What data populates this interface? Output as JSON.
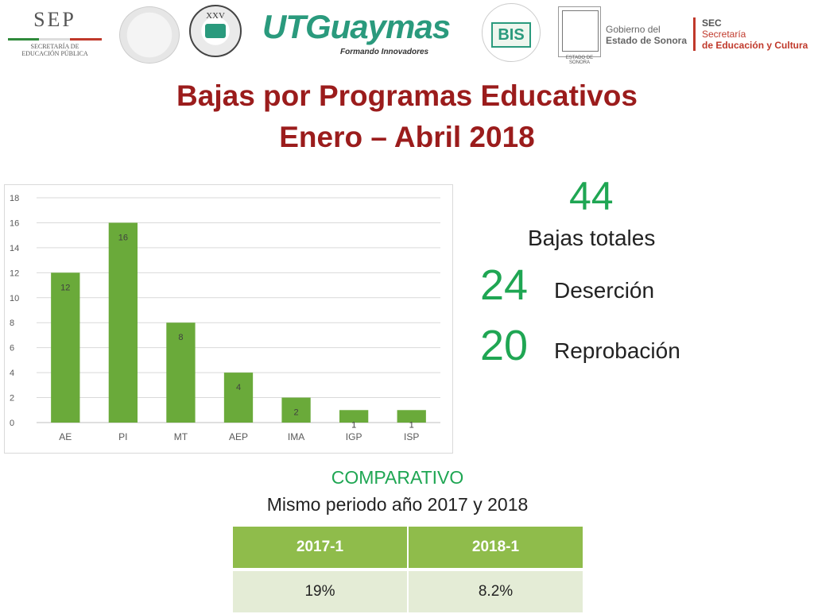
{
  "header": {
    "sep": {
      "title": "SEP",
      "subtitle_line1": "SECRETARÍA DE",
      "subtitle_line2": "EDUCACIÓN PÚBLICA"
    },
    "seal2": {
      "label": "XXV"
    },
    "utg": {
      "word": "UTGuaymas",
      "tagline": "Formando Innovadores"
    },
    "bis": {
      "mark": "BIS"
    },
    "sonora_seal": {
      "label": "ESTADO DE SONORA"
    },
    "gobierno": {
      "line1": "Gobierno del",
      "line2": "Estado de Sonora"
    },
    "sec": {
      "line1": "SEC",
      "line2": "Secretaría",
      "line3": "de Educación y Cultura"
    }
  },
  "title": {
    "line1": "Bajas por Programas Educativos",
    "line2": "Enero – Abril 2018"
  },
  "chart_data": {
    "type": "bar",
    "categories": [
      "AE",
      "PI",
      "MT",
      "AEP",
      "IMA",
      "IGP",
      "ISP"
    ],
    "values": [
      12,
      16,
      8,
      4,
      2,
      1,
      1
    ],
    "ylim": [
      0,
      18
    ],
    "yticks": [
      "0",
      "2",
      "4",
      "6",
      "8",
      "10",
      "12",
      "14",
      "16",
      "18"
    ],
    "grid": true,
    "bar_color": "#6aaa3a",
    "data_labels": [
      "12",
      "16",
      "8",
      "4",
      "2",
      "1",
      "1"
    ]
  },
  "stats": {
    "total_value": "44",
    "total_label": "Bajas totales",
    "desercion_value": "24",
    "desercion_label": "Deserción",
    "reprobacion_value": "20",
    "reprobacion_label": "Reprobación",
    "accent": "#1fa653"
  },
  "comparativo": {
    "title": "COMPARATIVO",
    "subtitle": "Mismo periodo año 2017 y 2018",
    "headers": [
      "2017-1",
      "2018-1"
    ],
    "values": [
      "19%",
      "8.2%"
    ]
  }
}
